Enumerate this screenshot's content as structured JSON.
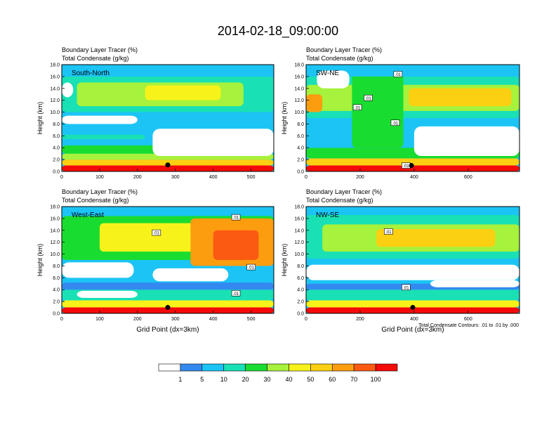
{
  "title": "2014-02-18_09:00:00",
  "colorbar": {
    "colors": [
      "#ffffff",
      "#3389f0",
      "#1bc4f5",
      "#19e0b5",
      "#19dc30",
      "#a6f23c",
      "#f7f31a",
      "#fcd012",
      "#fc9d10",
      "#fa5a11",
      "#f50a0a"
    ],
    "labels": [
      "1",
      "5",
      "10",
      "20",
      "30",
      "40",
      "50",
      "60",
      "70",
      "100"
    ]
  },
  "contour_note": "Total Condensate Contours: .01 to .01 by .000",
  "chart_data": [
    {
      "type": "heatmap",
      "panel_label": "South-North",
      "subtitle_line1": "Boundary Layer Tracer   (%)",
      "subtitle_line2": "Total Condensate   (g/kg)",
      "ylabel": "Height (km)",
      "xlabel": "",
      "xlim": [
        0,
        560
      ],
      "ylim": [
        0,
        18
      ],
      "xticks": [
        "0",
        "100",
        "200",
        "300",
        "400",
        "500"
      ],
      "yticks": [
        "0.0",
        "2.0",
        "4.0",
        "6.0",
        "8.0",
        "10.0",
        "12.0",
        "14.0",
        "16.0",
        "18.0"
      ],
      "marker": {
        "x": 280,
        "y": 1.1
      },
      "layers": [
        {
          "x": [
            0,
            560
          ],
          "y": [
            0,
            1.0
          ],
          "level": 10
        },
        {
          "x": [
            0,
            560
          ],
          "y": [
            1.0,
            2.0
          ],
          "level": 7
        },
        {
          "x": [
            0,
            560
          ],
          "y": [
            2.0,
            3.0
          ],
          "level": 5
        },
        {
          "x": [
            0,
            560
          ],
          "y": [
            3.0,
            4.4
          ],
          "level": 4
        },
        {
          "x": [
            0,
            560
          ],
          "y": [
            4.4,
            5.4
          ],
          "level": 2
        },
        {
          "x": [
            0,
            220
          ],
          "y": [
            5.4,
            6.2
          ],
          "level": 3
        },
        {
          "x": [
            0,
            560
          ],
          "y": [
            10.0,
            16.0
          ],
          "level": 3
        },
        {
          "x": [
            40,
            480
          ],
          "y": [
            11.0,
            15.0
          ],
          "level": 5
        },
        {
          "x": [
            220,
            420
          ],
          "y": [
            12.0,
            14.5
          ],
          "level": 6
        },
        {
          "x": [
            0,
            560
          ],
          "y": [
            16.0,
            17.2
          ],
          "level": 2
        }
      ],
      "voids": [
        {
          "x": [
            0,
            30
          ],
          "y": [
            12.5,
            15.0
          ]
        },
        {
          "x": [
            240,
            560
          ],
          "y": [
            2.6,
            7.2
          ]
        },
        {
          "x": [
            0,
            200
          ],
          "y": [
            8.0,
            9.4
          ]
        }
      ]
    },
    {
      "type": "heatmap",
      "panel_label": "SW-NE",
      "subtitle_line1": "Boundary Layer Tracer   (%)",
      "subtitle_line2": "Total Condensate   (g/kg)",
      "ylabel": "Height (km)",
      "xlabel": "",
      "xlim": [
        0,
        790
      ],
      "ylim": [
        0,
        18
      ],
      "xticks": [
        "0",
        "200",
        "400",
        "600"
      ],
      "yticks": [
        "0.0",
        "2.0",
        "4.0",
        "6.0",
        "8.0",
        "10.0",
        "12.0",
        "14.0",
        "16.0",
        "18.0"
      ],
      "marker": {
        "x": 390,
        "y": 1.0
      },
      "contour_labels": [
        {
          "text": ".01",
          "x": 340,
          "y": 16.4
        },
        {
          "text": ".01",
          "x": 230,
          "y": 12.4
        },
        {
          "text": ".01",
          "x": 190,
          "y": 10.8
        },
        {
          "text": ".01",
          "x": 330,
          "y": 8.2
        },
        {
          "text": ".01",
          "x": 370,
          "y": 1.0
        }
      ],
      "layers": [
        {
          "x": [
            0,
            790
          ],
          "y": [
            0,
            1.0
          ],
          "level": 10
        },
        {
          "x": [
            0,
            790
          ],
          "y": [
            1.0,
            2.2
          ],
          "level": 7
        },
        {
          "x": [
            0,
            790
          ],
          "y": [
            2.2,
            4.0
          ],
          "level": 4
        },
        {
          "x": [
            0,
            790
          ],
          "y": [
            4.0,
            5.2
          ],
          "level": 2
        },
        {
          "x": [
            0,
            790
          ],
          "y": [
            9.0,
            16.0
          ],
          "level": 3
        },
        {
          "x": [
            0,
            790
          ],
          "y": [
            10.2,
            14.6
          ],
          "level": 5
        },
        {
          "x": [
            380,
            760
          ],
          "y": [
            11.0,
            14.0
          ],
          "level": 7
        },
        {
          "x": [
            170,
            360
          ],
          "y": [
            4.0,
            16.5
          ],
          "level": 4
        },
        {
          "x": [
            0,
            60
          ],
          "y": [
            10.0,
            13.0
          ],
          "level": 8
        },
        {
          "x": [
            0,
            790
          ],
          "y": [
            16.0,
            17.4
          ],
          "level": 2
        }
      ],
      "voids": [
        {
          "x": [
            400,
            790
          ],
          "y": [
            2.6,
            7.6
          ]
        },
        {
          "x": [
            40,
            160
          ],
          "y": [
            14.0,
            17.0
          ]
        }
      ]
    },
    {
      "type": "heatmap",
      "panel_label": "West-East",
      "subtitle_line1": "Boundary Layer Tracer   (%)",
      "subtitle_line2": "Total Condensate   (g/kg)",
      "ylabel": "Height (km)",
      "xlabel": "Grid Point (dx=3km)",
      "xlim": [
        0,
        560
      ],
      "ylim": [
        0,
        18
      ],
      "xticks": [
        "0",
        "100",
        "200",
        "300",
        "400",
        "500"
      ],
      "yticks": [
        "0.0",
        "2.0",
        "4.0",
        "6.0",
        "8.0",
        "10.0",
        "12.0",
        "14.0",
        "16.0",
        "18.0"
      ],
      "marker": {
        "x": 280,
        "y": 1.0
      },
      "contour_labels": [
        {
          "text": ".01",
          "x": 460,
          "y": 16.2
        },
        {
          "text": ".01",
          "x": 250,
          "y": 13.6
        },
        {
          "text": ".01",
          "x": 500,
          "y": 7.8
        },
        {
          "text": ".01",
          "x": 460,
          "y": 3.4
        }
      ],
      "layers": [
        {
          "x": [
            0,
            560
          ],
          "y": [
            0,
            1.0
          ],
          "level": 10
        },
        {
          "x": [
            0,
            560
          ],
          "y": [
            1.0,
            2.2
          ],
          "level": 6
        },
        {
          "x": [
            0,
            560
          ],
          "y": [
            2.2,
            4.0
          ],
          "level": 3
        },
        {
          "x": [
            0,
            560
          ],
          "y": [
            4.0,
            5.2
          ],
          "level": 1
        },
        {
          "x": [
            0,
            560
          ],
          "y": [
            9.0,
            16.4
          ],
          "level": 4
        },
        {
          "x": [
            100,
            560
          ],
          "y": [
            10.4,
            15.2
          ],
          "level": 6
        },
        {
          "x": [
            340,
            560
          ],
          "y": [
            8.0,
            16.0
          ],
          "level": 8
        },
        {
          "x": [
            400,
            520
          ],
          "y": [
            9.0,
            14.0
          ],
          "level": 9
        },
        {
          "x": [
            0,
            560
          ],
          "y": [
            16.4,
            17.6
          ],
          "level": 2
        }
      ],
      "voids": [
        {
          "x": [
            0,
            190
          ],
          "y": [
            6.0,
            8.6
          ]
        },
        {
          "x": [
            240,
            440
          ],
          "y": [
            5.4,
            7.6
          ]
        },
        {
          "x": [
            40,
            200
          ],
          "y": [
            2.6,
            3.8
          ]
        }
      ]
    },
    {
      "type": "heatmap",
      "panel_label": "NW-SE",
      "subtitle_line1": "Boundary Layer Tracer   (%)",
      "subtitle_line2": "Total Condensate   (g/kg)",
      "ylabel": "Height (km)",
      "xlabel": "Grid Point (dx=3km)",
      "xlim": [
        0,
        790
      ],
      "ylim": [
        0,
        18
      ],
      "xticks": [
        "0",
        "200",
        "400",
        "600"
      ],
      "yticks": [
        "0.0",
        "2.0",
        "4.0",
        "6.0",
        "8.0",
        "10.0",
        "12.0",
        "14.0",
        "16.0",
        "18.0"
      ],
      "marker": {
        "x": 395,
        "y": 1.0
      },
      "contour_labels": [
        {
          "text": ".01",
          "x": 305,
          "y": 13.8
        },
        {
          "text": ".01",
          "x": 370,
          "y": 4.4
        }
      ],
      "layers": [
        {
          "x": [
            0,
            790
          ],
          "y": [
            0,
            1.0
          ],
          "level": 10
        },
        {
          "x": [
            0,
            790
          ],
          "y": [
            1.0,
            2.2
          ],
          "level": 6
        },
        {
          "x": [
            0,
            790
          ],
          "y": [
            2.2,
            4.0
          ],
          "level": 3
        },
        {
          "x": [
            0,
            790
          ],
          "y": [
            4.0,
            5.0
          ],
          "level": 1
        },
        {
          "x": [
            0,
            790
          ],
          "y": [
            9.2,
            16.6
          ],
          "level": 3
        },
        {
          "x": [
            60,
            790
          ],
          "y": [
            10.4,
            15.0
          ],
          "level": 5
        },
        {
          "x": [
            260,
            700
          ],
          "y": [
            11.2,
            14.2
          ],
          "level": 7
        },
        {
          "x": [
            0,
            790
          ],
          "y": [
            16.6,
            17.8
          ],
          "level": 2
        }
      ],
      "voids": [
        {
          "x": [
            0,
            790
          ],
          "y": [
            5.6,
            8.2
          ]
        },
        {
          "x": [
            460,
            790
          ],
          "y": [
            4.4,
            5.6
          ]
        }
      ]
    }
  ]
}
